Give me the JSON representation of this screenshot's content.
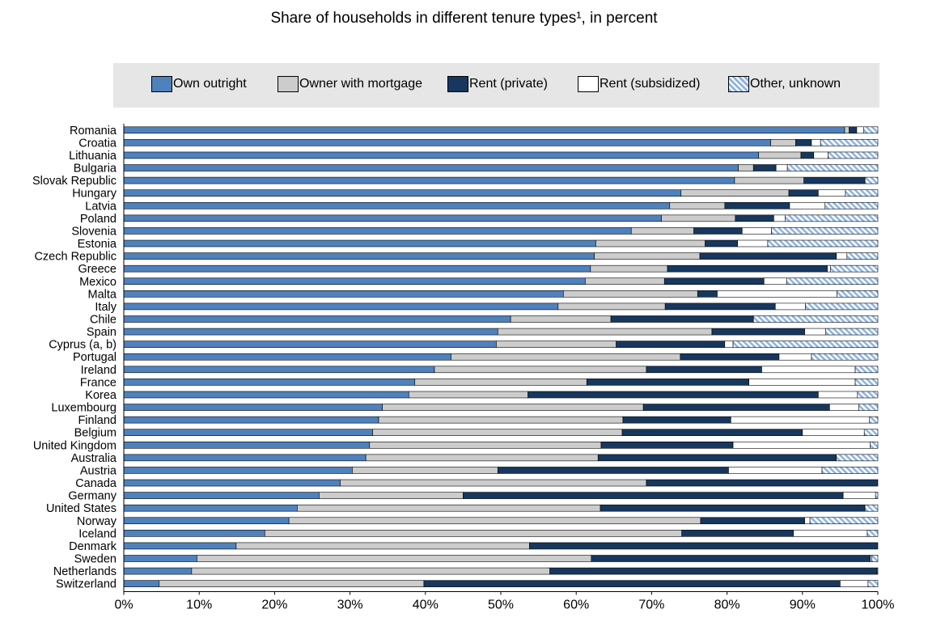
{
  "title": "Share of households in different tenure types¹, in percent",
  "legend": [
    {
      "label": "Own outright",
      "color": "#4f81bd",
      "pattern": false
    },
    {
      "label": "Owner with mortgage",
      "color": "#cccccc",
      "pattern": false
    },
    {
      "label": "Rent (private)",
      "color": "#17375e",
      "pattern": false
    },
    {
      "label": "Rent (subsidized)",
      "color": "#ffffff",
      "pattern": false
    },
    {
      "label": "Other, unknown",
      "color": "#8eb4e3",
      "pattern": true
    }
  ],
  "chart_data": {
    "type": "bar",
    "orientation": "horizontal",
    "stacked": "100%",
    "title": "Share of households in different tenure types¹, in percent",
    "legend_position": "top",
    "xlim": [
      0,
      100
    ],
    "x_ticks": [
      "0%",
      "10%",
      "20%",
      "30%",
      "40%",
      "50%",
      "60%",
      "70%",
      "80%",
      "90%",
      "100%"
    ],
    "categories": [
      "Romania",
      "Croatia",
      "Lithuania",
      "Bulgaria",
      "Slovak Republic",
      "Hungary",
      "Latvia",
      "Poland",
      "Slovenia",
      "Estonia",
      "Czech Republic",
      "Greece",
      "Mexico",
      "Malta",
      "Italy",
      "Chile",
      "Spain",
      "Cyprus (a, b)",
      "Portugal",
      "Ireland",
      "France",
      "Korea",
      "Luxembourg",
      "Finland",
      "Belgium",
      "United Kingdom",
      "Australia",
      "Austria",
      "Canada",
      "Germany",
      "United States",
      "Norway",
      "Iceland",
      "Denmark",
      "Sweden",
      "Netherlands",
      "Switzerland"
    ],
    "series": [
      {
        "name": "Own outright",
        "values": [
          95.6,
          85.8,
          84.2,
          81.5,
          81.0,
          73.9,
          72.4,
          71.3,
          67.3,
          62.6,
          62.4,
          61.9,
          61.2,
          58.3,
          57.6,
          51.3,
          49.6,
          49.4,
          43.4,
          41.2,
          38.6,
          37.8,
          34.3,
          33.8,
          33.0,
          32.6,
          32.1,
          30.3,
          28.7,
          25.9,
          23.0,
          21.9,
          18.7,
          14.9,
          9.7,
          9.0,
          4.7
        ]
      },
      {
        "name": "Owner with mortgage",
        "values": [
          0.6,
          3.3,
          5.6,
          2.0,
          9.2,
          14.3,
          7.3,
          9.8,
          8.3,
          14.5,
          14.0,
          10.2,
          10.5,
          17.8,
          14.2,
          13.3,
          28.4,
          15.9,
          30.4,
          28.1,
          22.8,
          15.8,
          34.6,
          32.4,
          33.1,
          30.7,
          30.8,
          19.3,
          40.6,
          19.1,
          40.2,
          54.6,
          55.3,
          38.9,
          52.3,
          47.5,
          35.1
        ]
      },
      {
        "name": "Rent (private)",
        "values": [
          1.0,
          2.1,
          1.7,
          3.0,
          8.1,
          3.9,
          8.6,
          5.1,
          6.4,
          4.3,
          18.1,
          21.2,
          13.2,
          2.6,
          14.6,
          18.9,
          12.3,
          14.4,
          13.1,
          15.3,
          21.5,
          38.5,
          24.7,
          14.3,
          23.9,
          17.5,
          31.6,
          30.6,
          30.7,
          50.4,
          35.1,
          13.8,
          14.8,
          46.2,
          37.0,
          43.4,
          55.2
        ]
      },
      {
        "name": "Rent (subsidized)",
        "values": [
          0.9,
          1.2,
          1.9,
          1.5,
          0.0,
          3.6,
          4.7,
          1.5,
          3.9,
          4.0,
          1.4,
          0.4,
          3.0,
          15.9,
          4.0,
          0.0,
          2.8,
          1.1,
          4.3,
          12.4,
          14.1,
          5.2,
          3.9,
          18.4,
          8.2,
          18.2,
          0.0,
          12.4,
          0.0,
          4.3,
          0.0,
          0.7,
          9.8,
          0.0,
          0.2,
          0.0,
          3.7
        ]
      },
      {
        "name": "Other, unknown",
        "values": [
          1.9,
          7.6,
          6.6,
          12.0,
          1.7,
          4.3,
          7.0,
          12.3,
          14.1,
          14.6,
          4.1,
          6.3,
          12.1,
          5.4,
          9.6,
          16.5,
          6.9,
          19.2,
          8.8,
          3.0,
          3.0,
          2.7,
          2.5,
          1.1,
          1.8,
          1.0,
          5.5,
          7.4,
          0.0,
          0.3,
          1.7,
          9.0,
          1.4,
          0.0,
          0.8,
          0.1,
          1.3
        ]
      }
    ]
  }
}
